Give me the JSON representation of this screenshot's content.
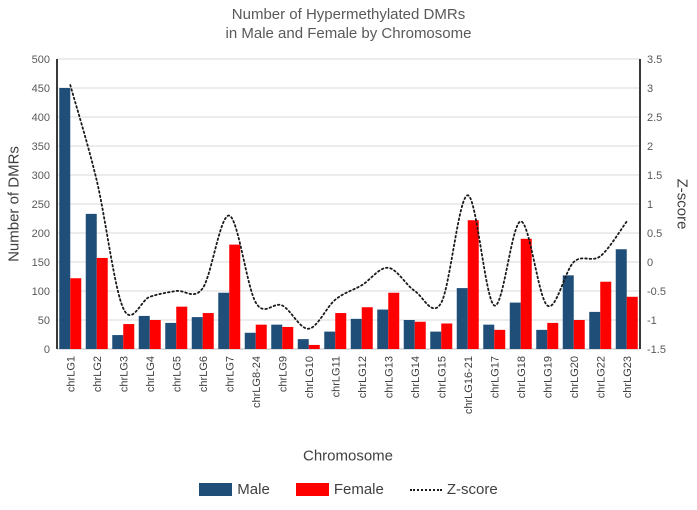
{
  "title": {
    "line1": "Number of Hypermethylated DMRs",
    "line2": "in Male and Female by Chromosome"
  },
  "axis_titles": {
    "left": "Number of DMRs",
    "right": "Z-score",
    "x": "Chromosome"
  },
  "legend": {
    "male": "Male",
    "female": "Female",
    "zscore": "Z-score"
  },
  "colors": {
    "male": "#1F4E79",
    "female": "#FF0000",
    "zscore_line": "#1A1A1A",
    "gridline": "#D9D9D9",
    "axis_line": "#3A3A3A",
    "baseline": "#BFBFBF",
    "title_text": "#595959",
    "axis_text": "#404040",
    "tick_text": "#595959"
  },
  "chart_data": {
    "type": "bar",
    "title": "Number of Hypermethylated DMRs in Male and Female by Chromosome",
    "xlabel": "Chromosome",
    "ylabel": "Number of DMRs",
    "y2label": "Z-score",
    "ylim": [
      0,
      500
    ],
    "ystep": 50,
    "y2lim": [
      -1.5,
      3.5
    ],
    "y2step": 0.5,
    "grid": true,
    "legend_position": "bottom",
    "categories": [
      "chrLG1",
      "chrLG2",
      "chrLG3",
      "chrLG4",
      "chrLG5",
      "chrLG6",
      "chrLG7",
      "chrLG8-24",
      "chrLG9",
      "chrLG10",
      "chrLG11",
      "chrLG12",
      "chrLG13",
      "chrLG14",
      "chrLG15",
      "chrLG16-21",
      "chrLG17",
      "chrLG18",
      "chrLG19",
      "chrLG20",
      "chrLG22",
      "chrLG23"
    ],
    "series": [
      {
        "name": "Male",
        "color": "#1F4E79",
        "values": [
          450,
          233,
          24,
          57,
          45,
          55,
          97,
          28,
          42,
          17,
          30,
          52,
          68,
          50,
          30,
          105,
          42,
          80,
          33,
          127,
          64,
          172
        ]
      },
      {
        "name": "Female",
        "color": "#FF0000",
        "values": [
          122,
          157,
          43,
          50,
          73,
          62,
          180,
          42,
          38,
          7,
          62,
          72,
          97,
          47,
          44,
          222,
          33,
          190,
          45,
          50,
          116,
          90
        ]
      }
    ],
    "line_series": {
      "name": "Z-score",
      "axis": "right",
      "style": "dotted",
      "color": "#1A1A1A",
      "values": [
        3.05,
        1.4,
        -0.8,
        -0.6,
        -0.5,
        -0.45,
        0.8,
        -0.7,
        -0.75,
        -1.15,
        -0.65,
        -0.4,
        -0.1,
        -0.5,
        -0.7,
        1.15,
        -0.75,
        0.7,
        -0.75,
        0.0,
        0.1,
        0.7
      ]
    }
  }
}
